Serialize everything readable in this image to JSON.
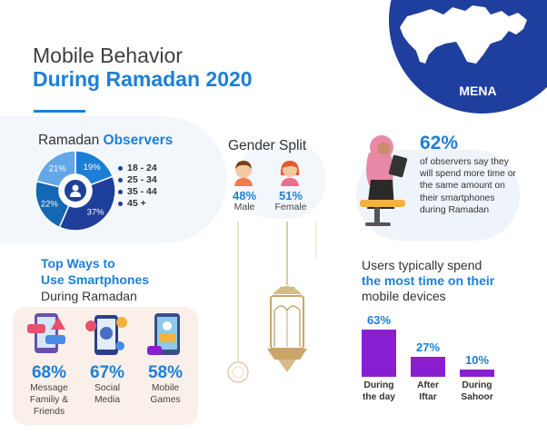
{
  "header": {
    "title_line1": "Mobile Behavior",
    "title_line2": "During Ramadan 2020",
    "region_label": "MENA"
  },
  "observers": {
    "title_plain": "Ramadan",
    "title_bold": "Observers",
    "legend": [
      "18 - 24",
      "25 - 34",
      "35 - 44",
      "45 +"
    ]
  },
  "gender": {
    "title": "Gender Split",
    "male": {
      "pct": "48%",
      "label": "Male"
    },
    "female": {
      "pct": "51%",
      "label": "Female"
    }
  },
  "observers_stat": {
    "pct": "62%",
    "lines": [
      "of observers say they",
      "will spend more time or",
      "the same amount on",
      "their smartphones",
      "during Ramadan"
    ]
  },
  "top_ways": {
    "line1": "Top Ways to",
    "line2": "Use Smartphones",
    "line3": "During Ramadan",
    "items": [
      {
        "pct": "68%",
        "label_lines": [
          "Message",
          "Familiy &",
          "Friends"
        ]
      },
      {
        "pct": "67%",
        "label_lines": [
          "Social",
          "Media"
        ]
      },
      {
        "pct": "58%",
        "label_lines": [
          "Mobile",
          "Games"
        ]
      }
    ]
  },
  "spend": {
    "line1": "Users typically spend",
    "line2": "the most time on their",
    "line3": "mobile devices"
  },
  "colors": {
    "blue": "#1c7fd6",
    "navy": "#1e3f9a",
    "purple": "#8a1fd1",
    "gold": "#c9a56a"
  },
  "chart_data": [
    {
      "type": "pie",
      "title": "Ramadan Observers",
      "categories": [
        "18 - 24",
        "25 - 34",
        "35 - 44",
        "45 +"
      ],
      "values": [
        19,
        37,
        22,
        21
      ],
      "labels": [
        "19%",
        "37%",
        "22%",
        "21%"
      ],
      "colors": [
        "#1c7fd6",
        "#1e3f9a",
        "#1467b3",
        "#64a7e8"
      ],
      "legend": "right"
    },
    {
      "type": "bar",
      "categories": [
        "During the day",
        "After Iftar",
        "During Sahoor"
      ],
      "category_lines": [
        [
          "During",
          "the day"
        ],
        [
          "After",
          "Iftar"
        ],
        [
          "During",
          "Sahoor"
        ]
      ],
      "values": [
        63,
        27,
        10
      ],
      "labels": [
        "63%",
        "27%",
        "10%"
      ],
      "ylim": [
        0,
        63
      ],
      "color": "#8a1fd1"
    }
  ]
}
